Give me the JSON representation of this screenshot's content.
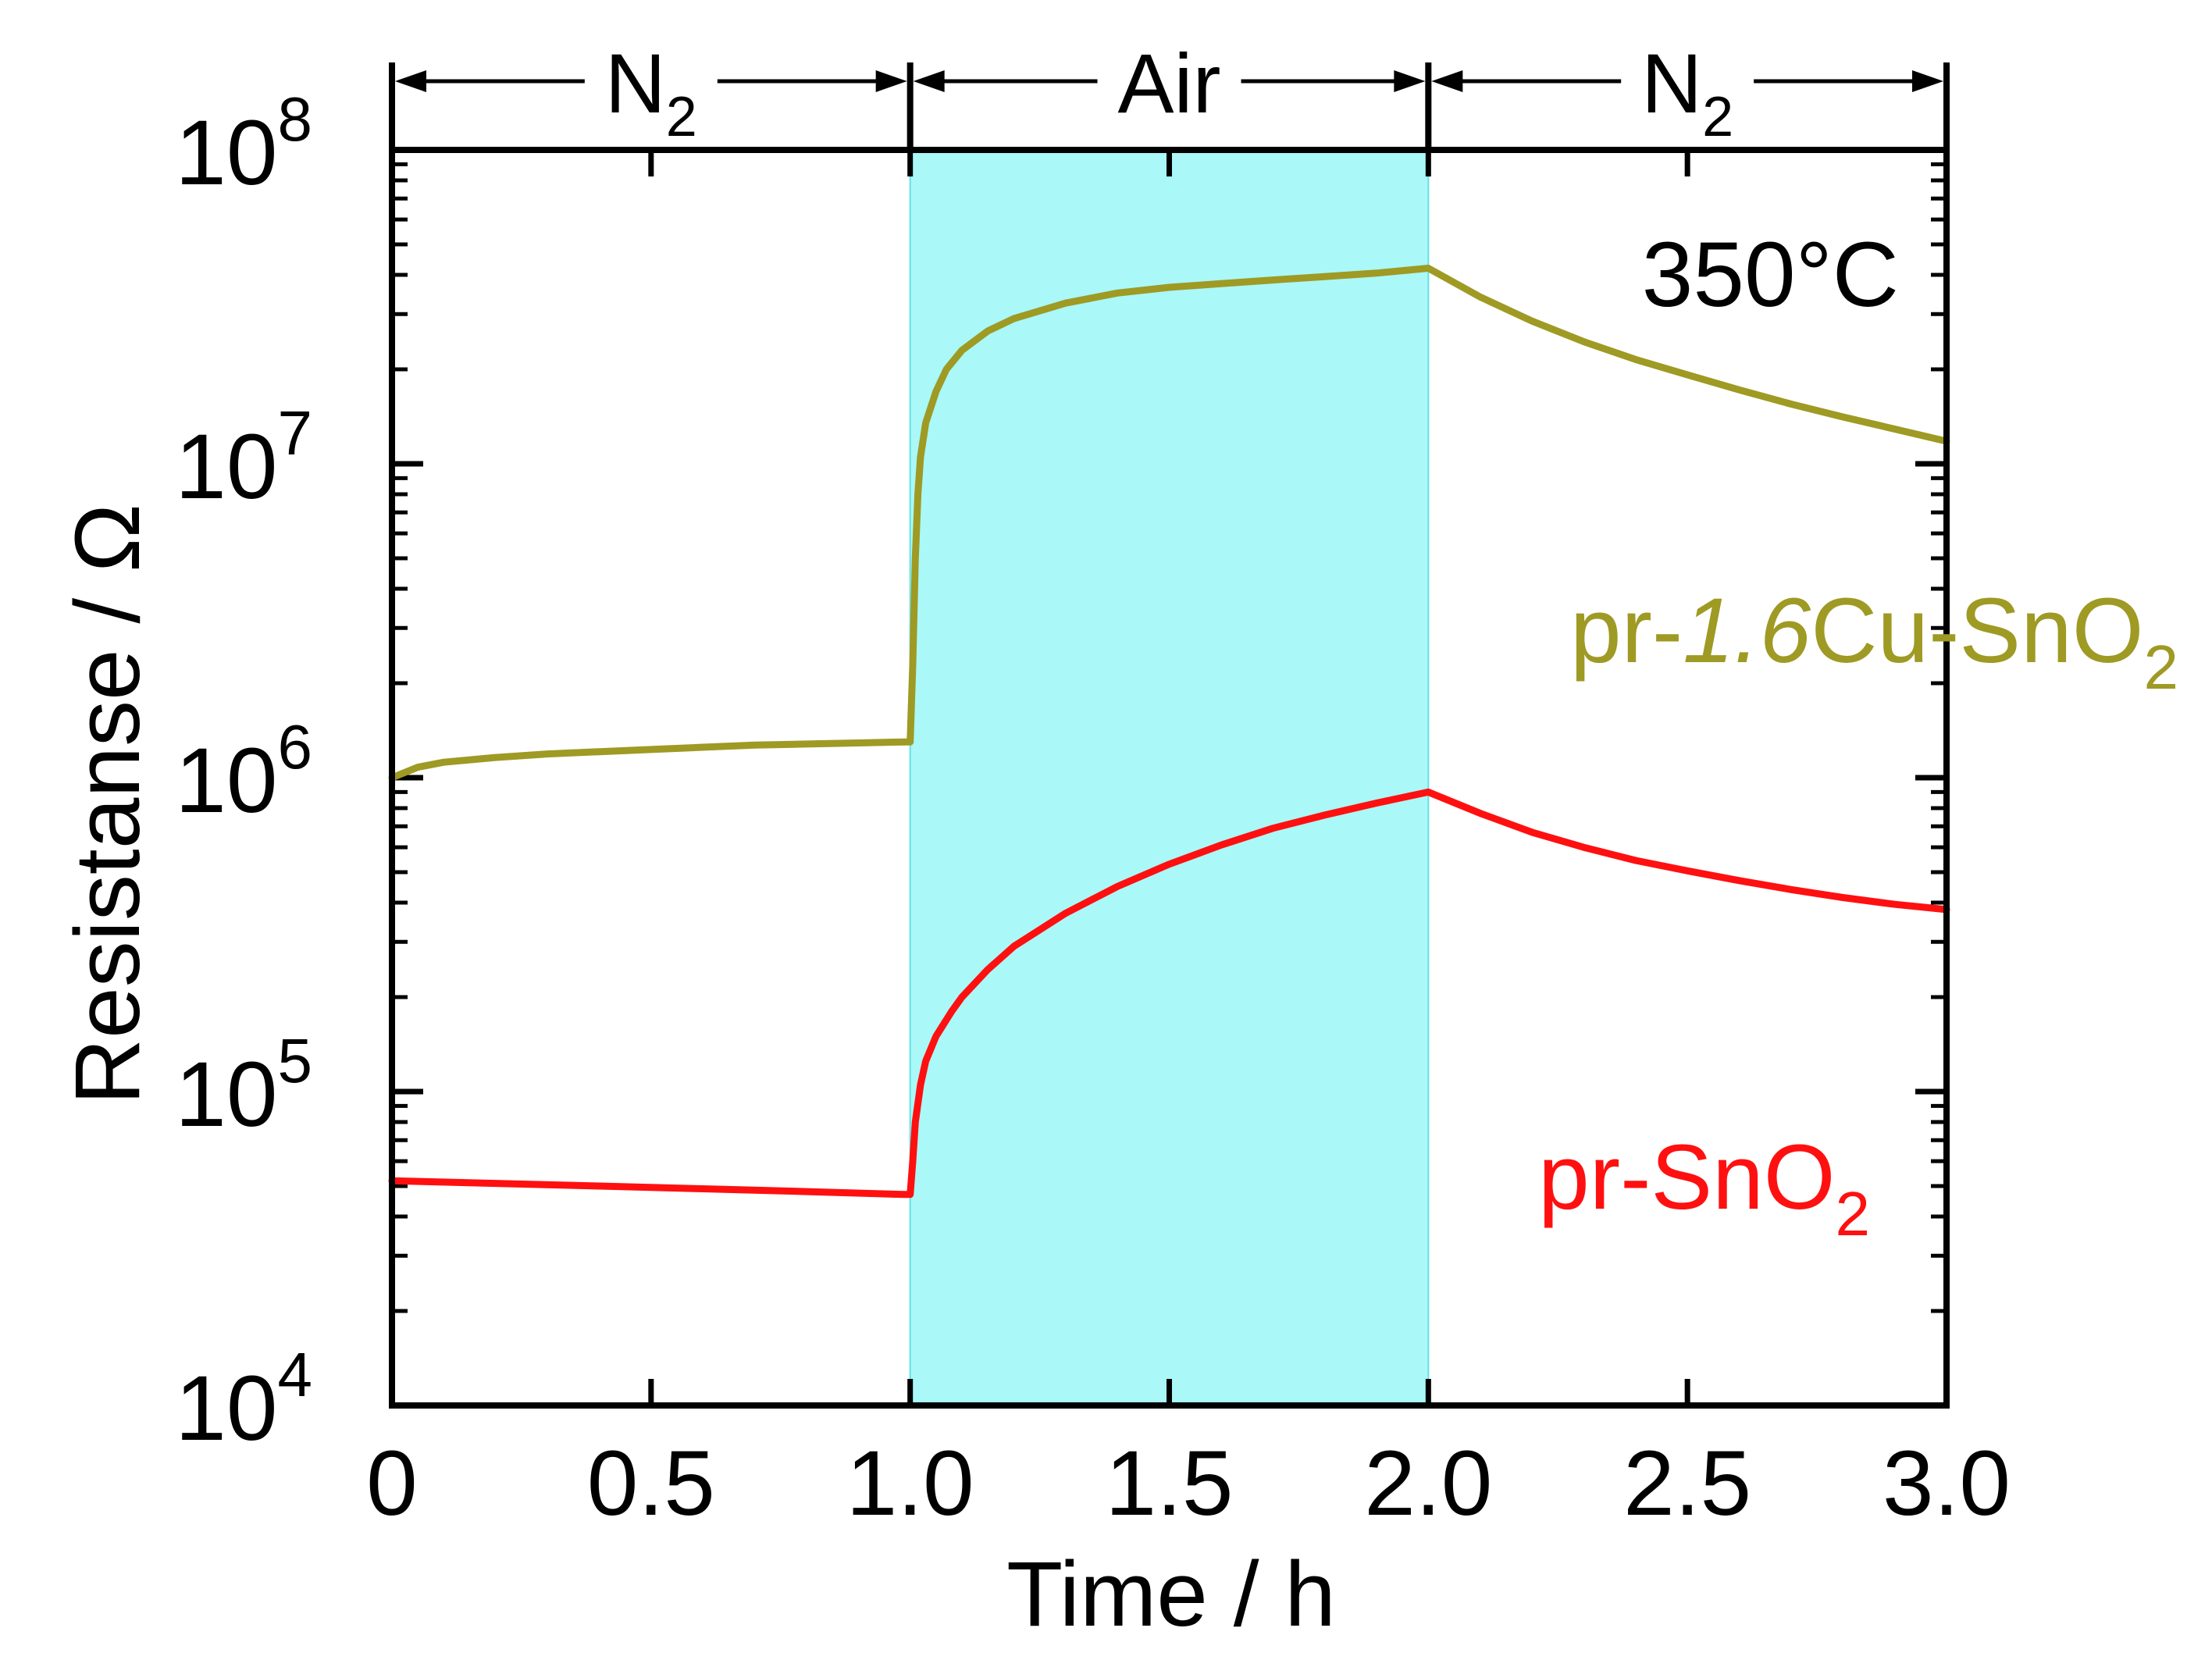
{
  "chart_data": {
    "type": "line",
    "title": "",
    "xlabel": "Time / h",
    "ylabel": "Resistanse / Ω",
    "xlim": [
      0,
      3
    ],
    "ylim": [
      10000,
      100000000
    ],
    "yscale": "log",
    "x_ticks": [
      0,
      0.5,
      1.0,
      1.5,
      2.0,
      2.5,
      3.0
    ],
    "x_tick_labels": [
      "0",
      "0.5",
      "1.0",
      "1.5",
      "2.0",
      "2.5",
      "3.0"
    ],
    "y_ticks": [
      {
        "value": 10000,
        "base": "10",
        "exp": "4"
      },
      {
        "value": 100000,
        "base": "10",
        "exp": "5"
      },
      {
        "value": 1000000,
        "base": "10",
        "exp": "6"
      },
      {
        "value": 10000000,
        "base": "10",
        "exp": "7"
      },
      {
        "value": 100000000,
        "base": "10",
        "exp": "8"
      }
    ],
    "temperature_label": "350°C",
    "atmosphere_phases": [
      {
        "label": "N",
        "sub": "2",
        "start": 0,
        "end": 1,
        "highlight": false,
        "color": ""
      },
      {
        "label": "Air",
        "sub": "",
        "start": 1,
        "end": 2,
        "highlight": true,
        "color": "#aaf8f8"
      },
      {
        "label": "N",
        "sub": "2",
        "start": 2,
        "end": 3,
        "highlight": false,
        "color": ""
      }
    ],
    "series": [
      {
        "name": "pr-1.6Cu-SnO2",
        "label_parts": [
          {
            "text": "pr-",
            "style": "normal"
          },
          {
            "text": "1.6",
            "style": "italic"
          },
          {
            "text": "Cu-SnO",
            "style": "normal"
          },
          {
            "text": "2",
            "style": "sub"
          }
        ],
        "color": "#9e9a24",
        "x": [
          0,
          0.05,
          0.1,
          0.2,
          0.3,
          0.4,
          0.5,
          0.6,
          0.7,
          0.8,
          0.9,
          0.99,
          1.0,
          1.005,
          1.01,
          1.015,
          1.02,
          1.03,
          1.05,
          1.07,
          1.1,
          1.15,
          1.2,
          1.3,
          1.4,
          1.5,
          1.6,
          1.7,
          1.8,
          1.9,
          2.0,
          2.1,
          2.2,
          2.3,
          2.4,
          2.5,
          2.6,
          2.7,
          2.8,
          2.9,
          3.0
        ],
        "values": [
          1000000,
          1080000,
          1120000,
          1160000,
          1190000,
          1210000,
          1230000,
          1250000,
          1270000,
          1280000,
          1290000,
          1300000,
          1300000,
          2300000,
          5000000,
          8000000,
          10500000,
          13500000,
          17000000,
          20000000,
          23000000,
          26500000,
          29000000,
          32500000,
          35000000,
          36500000,
          37500000,
          38500000,
          39500000,
          40500000,
          42000000,
          34000000,
          28500000,
          24500000,
          21500000,
          19200000,
          17200000,
          15500000,
          14100000,
          12900000,
          11800000
        ]
      },
      {
        "name": "pr-SnO2",
        "label_parts": [
          {
            "text": "pr-SnO",
            "style": "normal"
          },
          {
            "text": "2",
            "style": "sub"
          }
        ],
        "color": "#ff1010",
        "x": [
          0,
          0.2,
          0.4,
          0.6,
          0.8,
          0.99,
          1.0,
          1.005,
          1.01,
          1.02,
          1.03,
          1.05,
          1.08,
          1.1,
          1.15,
          1.2,
          1.3,
          1.4,
          1.5,
          1.6,
          1.7,
          1.8,
          1.9,
          2.0,
          2.1,
          2.2,
          2.3,
          2.4,
          2.5,
          2.6,
          2.7,
          2.8,
          2.9,
          3.0
        ],
        "values": [
          52000,
          51000,
          50000,
          49000,
          48000,
          47000,
          47000,
          60000,
          80000,
          105000,
          125000,
          150000,
          180000,
          200000,
          245000,
          290000,
          370000,
          450000,
          530000,
          610000,
          690000,
          760000,
          830000,
          900000,
          770000,
          670000,
          600000,
          545000,
          505000,
          470000,
          440000,
          415000,
          395000,
          380000
        ]
      }
    ]
  }
}
